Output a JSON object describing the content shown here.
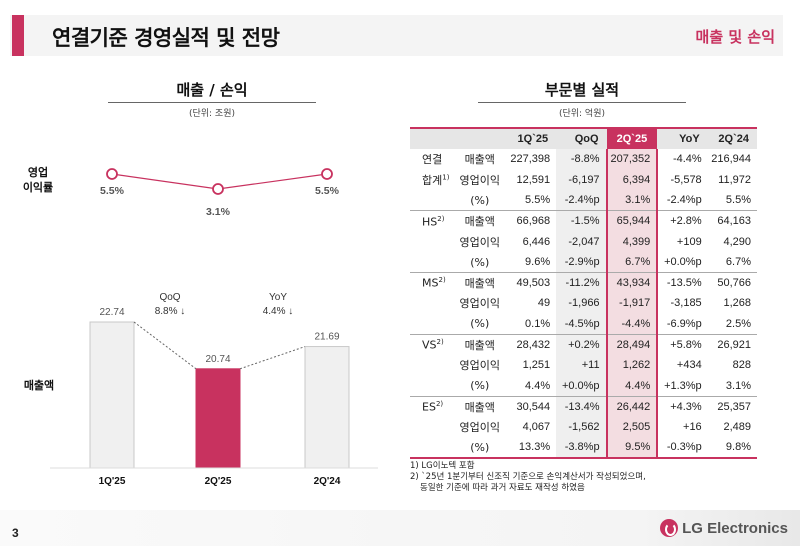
{
  "header": {
    "title": "연결기준 경영실적 및 전망",
    "section": "매출 및 손익"
  },
  "left_panel": {
    "title": "매출 / 손익",
    "unit": "(단위: 조원)",
    "margin_label_line1": "영업",
    "margin_label_line2": "이익률",
    "revenue_label": "매출액",
    "qoq_label": "QoQ",
    "qoq_value": "8.8% ↓",
    "yoy_label": "YoY",
    "yoy_value": "4.4% ↓"
  },
  "chart_data": [
    {
      "type": "line",
      "title": "영업이익률",
      "categories": [
        "1Q'25",
        "2Q'25",
        "2Q'24"
      ],
      "values": [
        5.5,
        3.1,
        5.5
      ],
      "labels": [
        "5.5%",
        "3.1%",
        "5.5%"
      ],
      "color": "#c8325f"
    },
    {
      "type": "bar",
      "title": "매출액",
      "unit": "조원",
      "categories": [
        "1Q'25",
        "2Q'25",
        "2Q'24"
      ],
      "values": [
        22.74,
        20.74,
        21.69
      ],
      "labels": [
        "22.74",
        "20.74",
        "21.69"
      ],
      "colors": [
        "#f0f0f0",
        "#c8325f",
        "#f0f0f0"
      ],
      "annotations": [
        {
          "label": "QoQ",
          "value": "8.8% ↓"
        },
        {
          "label": "YoY",
          "value": "4.4% ↓"
        }
      ]
    }
  ],
  "right_panel": {
    "title": "부문별 실적",
    "unit": "(단위: 억원)",
    "columns": [
      "",
      "",
      "1Q`25",
      "QoQ",
      "2Q`25",
      "YoY",
      "2Q`24"
    ],
    "groups": [
      {
        "name": "연결",
        "name2": "합계",
        "sup": "1)",
        "rows": [
          {
            "metric": "매출액",
            "q1_25": "227,398",
            "qoq": "-8.8%",
            "q2_25": "207,352",
            "yoy": "-4.4%",
            "q2_24": "216,944"
          },
          {
            "metric": "영업이익",
            "q1_25": "12,591",
            "qoq": "-6,197",
            "q2_25": "6,394",
            "yoy": "-5,578",
            "q2_24": "11,972"
          },
          {
            "metric": "(%)",
            "q1_25": "5.5%",
            "qoq": "-2.4%p",
            "q2_25": "3.1%",
            "yoy": "-2.4%p",
            "q2_24": "5.5%"
          }
        ]
      },
      {
        "name": "HS",
        "sup": "2)",
        "rows": [
          {
            "metric": "매출액",
            "q1_25": "66,968",
            "qoq": "-1.5%",
            "q2_25": "65,944",
            "yoy": "+2.8%",
            "q2_24": "64,163"
          },
          {
            "metric": "영업이익",
            "q1_25": "6,446",
            "qoq": "-2,047",
            "q2_25": "4,399",
            "yoy": "+109",
            "q2_24": "4,290"
          },
          {
            "metric": "(%)",
            "q1_25": "9.6%",
            "qoq": "-2.9%p",
            "q2_25": "6.7%",
            "yoy": "+0.0%p",
            "q2_24": "6.7%"
          }
        ]
      },
      {
        "name": "MS",
        "sup": "2)",
        "rows": [
          {
            "metric": "매출액",
            "q1_25": "49,503",
            "qoq": "-11.2%",
            "q2_25": "43,934",
            "yoy": "-13.5%",
            "q2_24": "50,766"
          },
          {
            "metric": "영업이익",
            "q1_25": "49",
            "qoq": "-1,966",
            "q2_25": "-1,917",
            "yoy": "-3,185",
            "q2_24": "1,268"
          },
          {
            "metric": "(%)",
            "q1_25": "0.1%",
            "qoq": "-4.5%p",
            "q2_25": "-4.4%",
            "yoy": "-6.9%p",
            "q2_24": "2.5%"
          }
        ]
      },
      {
        "name": "VS",
        "sup": "2)",
        "rows": [
          {
            "metric": "매출액",
            "q1_25": "28,432",
            "qoq": "+0.2%",
            "q2_25": "28,494",
            "yoy": "+5.8%",
            "q2_24": "26,921"
          },
          {
            "metric": "영업이익",
            "q1_25": "1,251",
            "qoq": "+11",
            "q2_25": "1,262",
            "yoy": "+434",
            "q2_24": "828"
          },
          {
            "metric": "(%)",
            "q1_25": "4.4%",
            "qoq": "+0.0%p",
            "q2_25": "4.4%",
            "yoy": "+1.3%p",
            "q2_24": "3.1%"
          }
        ]
      },
      {
        "name": "ES",
        "sup": "2)",
        "rows": [
          {
            "metric": "매출액",
            "q1_25": "30,544",
            "qoq": "-13.4%",
            "q2_25": "26,442",
            "yoy": "+4.3%",
            "q2_24": "25,357"
          },
          {
            "metric": "영업이익",
            "q1_25": "4,067",
            "qoq": "-1,562",
            "q2_25": "2,505",
            "yoy": "+16",
            "q2_24": "2,489"
          },
          {
            "metric": "(%)",
            "q1_25": "13.3%",
            "qoq": "-3.8%p",
            "q2_25": "9.5%",
            "yoy": "-0.3%p",
            "q2_24": "9.8%"
          }
        ]
      }
    ],
    "footnotes": [
      "1) LG이노텍 포함",
      "2) `25년 1분기부터 신조직 기준으로 손익계산서가 작성되었으며,",
      "    동일한 기준에 따라 과거 자료도 재작성 하였음"
    ]
  },
  "footer": {
    "page_number": "3",
    "logo_text": "LG Electronics",
    "logo_icon": "lg-logo-icon"
  }
}
